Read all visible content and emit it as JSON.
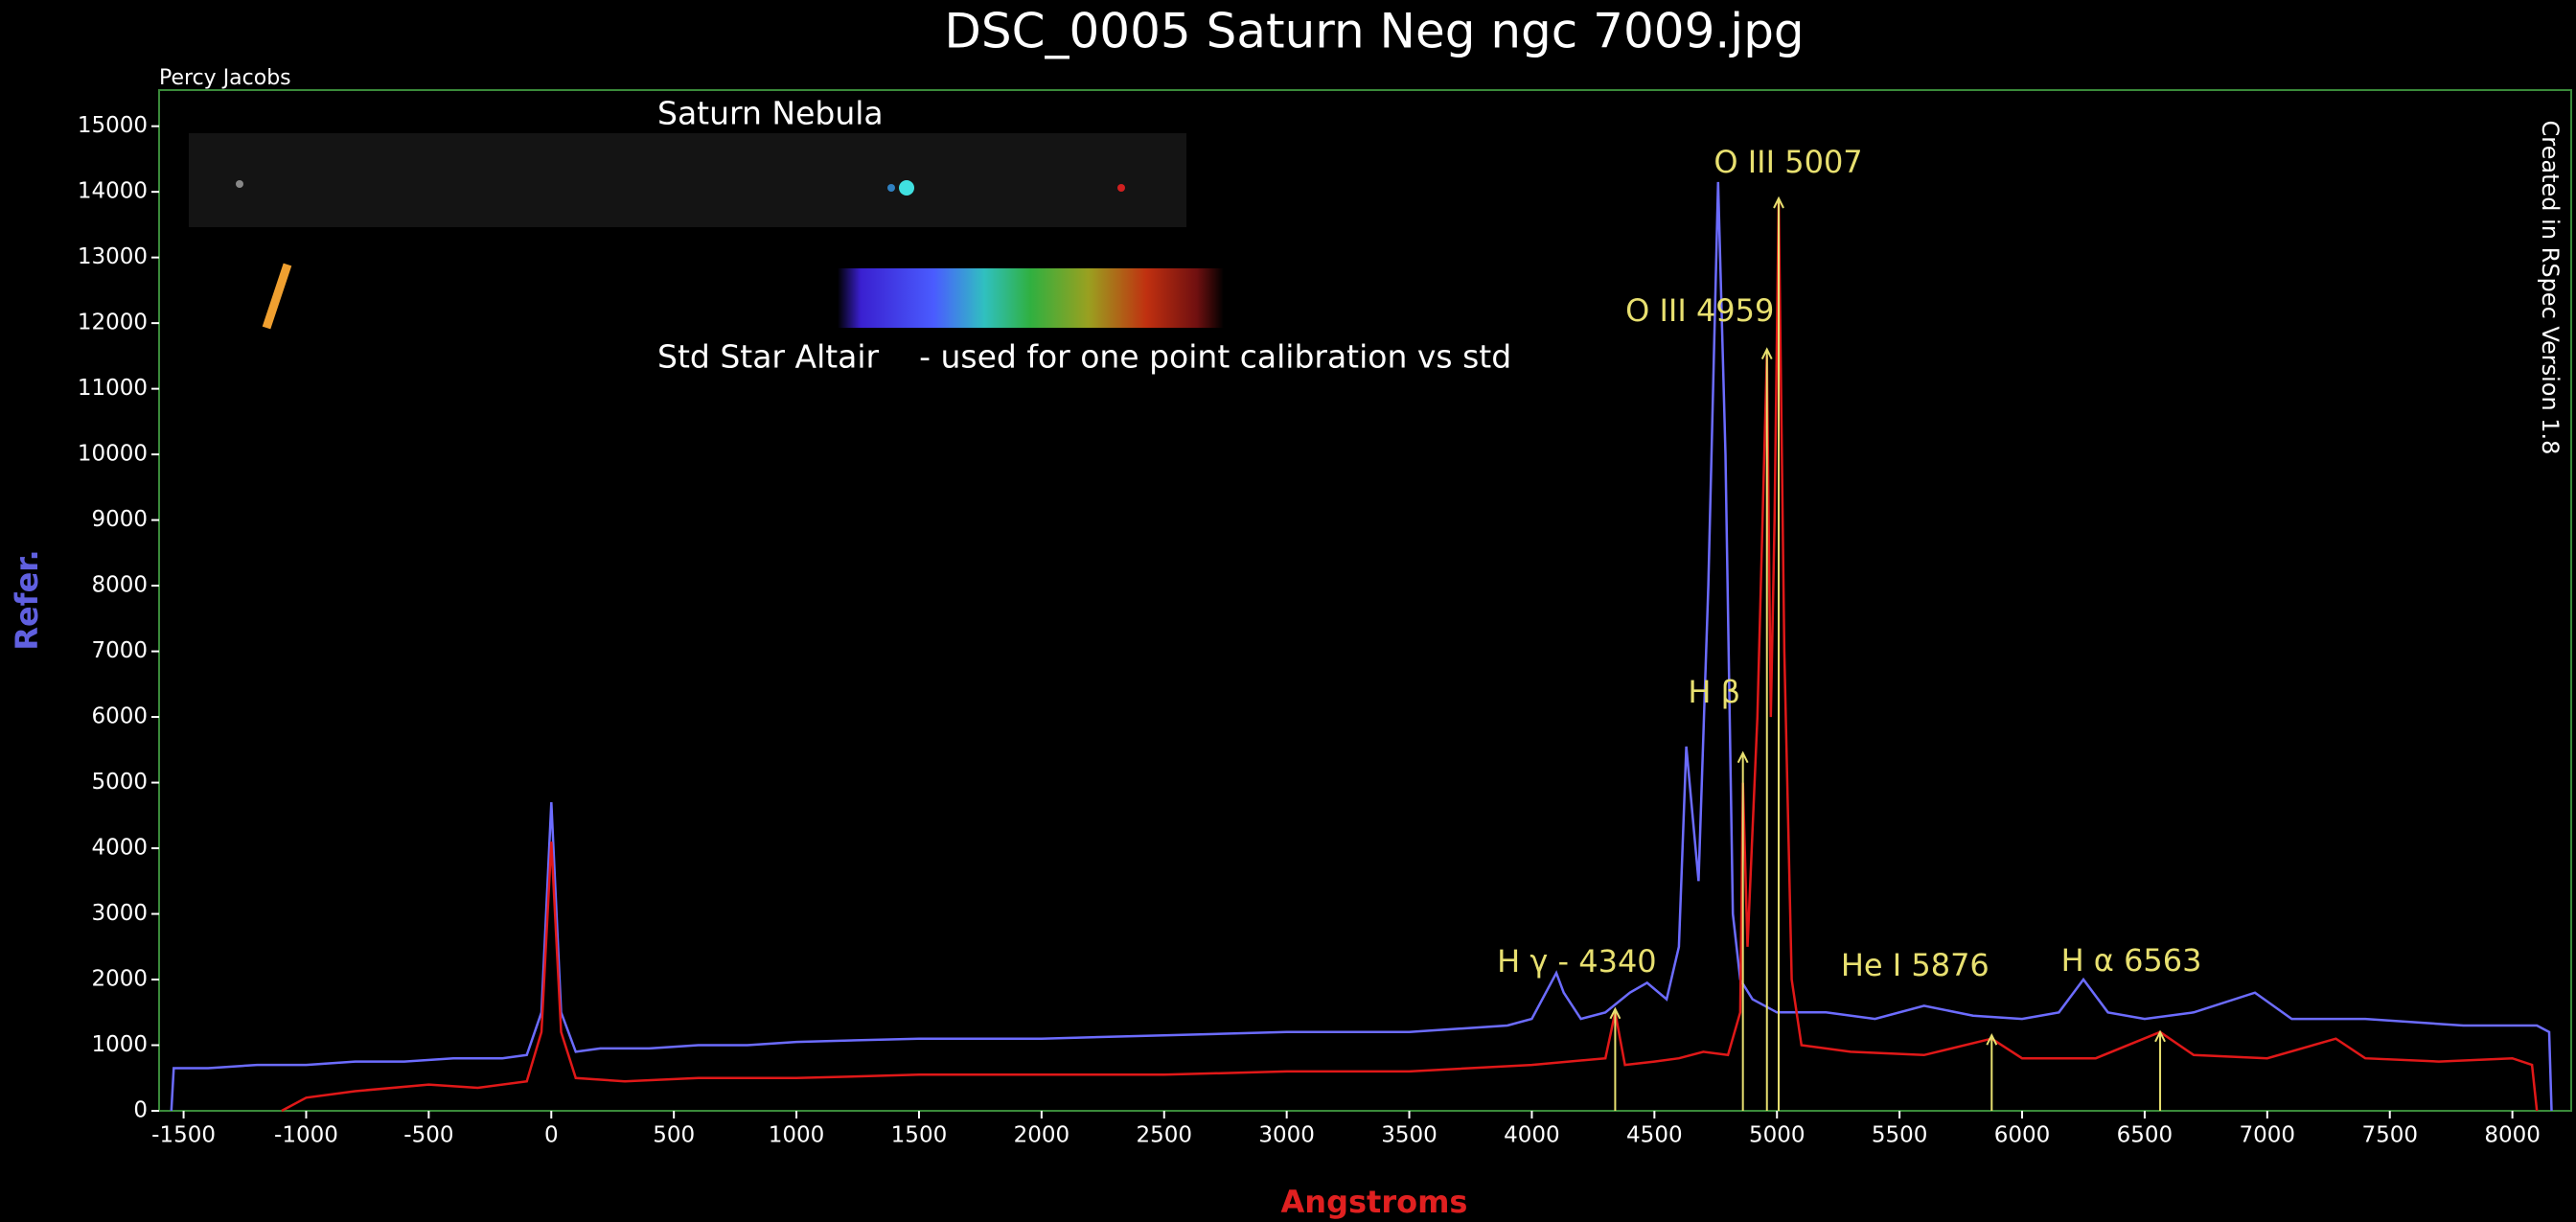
{
  "chart_data": {
    "type": "line",
    "title": "DSC_0005 Saturn Neg ngc 7009.jpg",
    "xlabel": "Angstroms",
    "ylabel": "Refer.",
    "xlim": [
      -1600,
      8240
    ],
    "ylim": [
      0,
      15550
    ],
    "xticks": [
      -1500,
      -1000,
      -500,
      0,
      500,
      1000,
      1500,
      2000,
      2500,
      3000,
      3500,
      4000,
      4500,
      5000,
      5500,
      6000,
      6500,
      7000,
      7500,
      8000
    ],
    "yticks": [
      0,
      1000,
      2000,
      3000,
      4000,
      5000,
      6000,
      7000,
      8000,
      9000,
      10000,
      11000,
      12000,
      13000,
      14000,
      15000
    ],
    "series": [
      {
        "color": "#6c6cff",
        "x": [
          -1550,
          -1540,
          -1400,
          -1200,
          -1000,
          -800,
          -600,
          -400,
          -200,
          -100,
          -40,
          0,
          40,
          100,
          200,
          400,
          600,
          800,
          1000,
          1500,
          2000,
          2500,
          3000,
          3500,
          3900,
          4000,
          4100,
          4130,
          4200,
          4300,
          4400,
          4470,
          4550,
          4600,
          4630,
          4680,
          4720,
          4760,
          4790,
          4820,
          4850,
          4900,
          5000,
          5200,
          5400,
          5600,
          5800,
          6000,
          6150,
          6250,
          6350,
          6500,
          6700,
          6950,
          7100,
          7400,
          7800,
          8100,
          8150,
          8160
        ],
        "values": [
          0,
          650,
          650,
          700,
          700,
          750,
          750,
          800,
          800,
          850,
          1500,
          4700,
          1500,
          900,
          950,
          950,
          1000,
          1000,
          1050,
          1100,
          1100,
          1150,
          1200,
          1200,
          1300,
          1400,
          2100,
          1800,
          1400,
          1500,
          1800,
          1950,
          1700,
          2500,
          5550,
          3500,
          8000,
          14150,
          10000,
          3000,
          2000,
          1700,
          1500,
          1500,
          1400,
          1600,
          1450,
          1400,
          1500,
          2000,
          1500,
          1400,
          1500,
          1800,
          1400,
          1400,
          1300,
          1300,
          1200,
          0
        ]
      },
      {
        "color": "#e01818",
        "x": [
          -1100,
          -1000,
          -800,
          -500,
          -300,
          -100,
          -40,
          0,
          40,
          100,
          300,
          600,
          1000,
          1500,
          2000,
          2500,
          3000,
          3500,
          4000,
          4300,
          4340,
          4380,
          4500,
          4600,
          4700,
          4800,
          4850,
          4861,
          4880,
          4920,
          4959,
          4975,
          4990,
          5007,
          5030,
          5060,
          5100,
          5300,
          5600,
          5876,
          6000,
          6300,
          6563,
          6700,
          7000,
          7280,
          7400,
          7700,
          8000,
          8080,
          8100
        ],
        "values": [
          0,
          200,
          300,
          400,
          350,
          450,
          1200,
          4100,
          1200,
          500,
          450,
          500,
          500,
          550,
          550,
          550,
          600,
          600,
          700,
          800,
          1500,
          700,
          750,
          800,
          900,
          850,
          1500,
          5000,
          2500,
          6000,
          11500,
          6000,
          9000,
          13900,
          7000,
          2000,
          1000,
          900,
          850,
          1100,
          800,
          800,
          1200,
          850,
          800,
          1100,
          800,
          750,
          800,
          700,
          0
        ]
      }
    ],
    "markers": [
      {
        "label": "H γ - 4340",
        "x": 4340,
        "y": 1550
      },
      {
        "label": "H β",
        "x": 4861,
        "y": 5450
      },
      {
        "label": "O III 4959",
        "x": 4959,
        "y": 11600
      },
      {
        "label": "O III 5007",
        "x": 5007,
        "y": 13900
      },
      {
        "label": "He I 5876",
        "x": 5876,
        "y": 1150
      },
      {
        "label": "H α 6563",
        "x": 6563,
        "y": 1200
      }
    ],
    "marker_color": "#e8e070",
    "annotations": {
      "author": "Percy Jacobs",
      "object": "Saturn Nebula",
      "calibration": "Std Star Altair    - used for one point calibration vs std",
      "software": "Created in RSpec Version 1.8"
    }
  }
}
